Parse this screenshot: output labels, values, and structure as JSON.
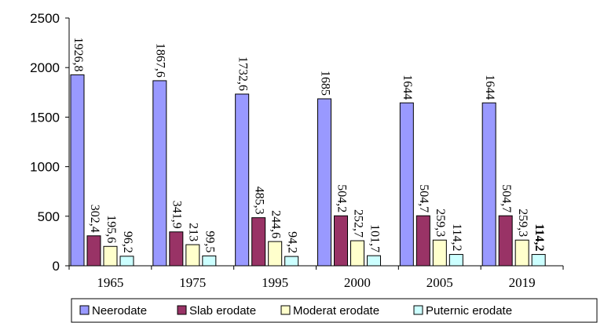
{
  "chart_data": {
    "type": "bar",
    "categories": [
      "1965",
      "1975",
      "1995",
      "2000",
      "2005",
      "2019"
    ],
    "series": [
      {
        "name": "Neerodate",
        "color": "#9999ff",
        "values": [
          1926.8,
          1867.6,
          1732.6,
          1685,
          1644,
          1644
        ],
        "labels": [
          "1926,8",
          "1867,6",
          "1732,6",
          "1685",
          "1644",
          "1644"
        ]
      },
      {
        "name": "Slab erodate",
        "color": "#993366",
        "values": [
          302.4,
          341.9,
          485.3,
          504.2,
          504.7,
          504.7
        ],
        "labels": [
          "302,4",
          "341,9",
          "485,3",
          "504,2",
          "504,7",
          "504,7"
        ]
      },
      {
        "name": "Moderat erodate",
        "color": "#ffffcc",
        "values": [
          195.6,
          213,
          244.6,
          252.7,
          259.3,
          259.3
        ],
        "labels": [
          "195,6",
          "213",
          "244,6",
          "252,7",
          "259,3",
          "259,3"
        ]
      },
      {
        "name": "Puternic erodate",
        "color": "#ccffff",
        "values": [
          96.2,
          99.5,
          94.2,
          101.7,
          114.2,
          114.2
        ],
        "labels": [
          "96,2",
          "99,5",
          "94,2",
          "101,7",
          "114,2",
          "114,2"
        ]
      }
    ],
    "ylim": [
      0,
      2500
    ],
    "yticks": [
      "0",
      "500",
      "1000",
      "1500",
      "2000",
      "2500"
    ],
    "title": "",
    "xlabel": "",
    "ylabel": "",
    "grid": false,
    "legend_position": "bottom"
  }
}
